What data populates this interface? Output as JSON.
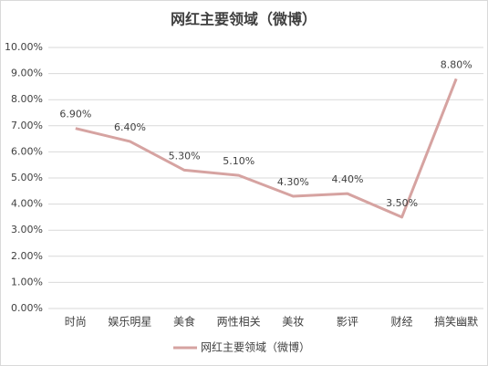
{
  "chart_data": {
    "type": "line",
    "title": "网红主要领域（微博）",
    "categories": [
      "时尚",
      "娱乐明星",
      "美食",
      "两性相关",
      "美妆",
      "影评",
      "财经",
      "搞笑幽默"
    ],
    "series": [
      {
        "name": "网红主要领域（微博）",
        "color": "#d6a3a1",
        "values": [
          6.9,
          6.4,
          5.3,
          5.1,
          4.3,
          4.4,
          3.5,
          8.8
        ],
        "value_labels": [
          "6.90%",
          "6.40%",
          "5.30%",
          "5.10%",
          "4.30%",
          "4.40%",
          "3.50%",
          "8.80%"
        ]
      }
    ],
    "ylim": [
      0,
      10
    ],
    "yticks": [
      {
        "value": 0,
        "label": "0.00%"
      },
      {
        "value": 1,
        "label": "1.00%"
      },
      {
        "value": 2,
        "label": "2.00%"
      },
      {
        "value": 3,
        "label": "3.00%"
      },
      {
        "value": 4,
        "label": "4.00%"
      },
      {
        "value": 5,
        "label": "5.00%"
      },
      {
        "value": 6,
        "label": "6.00%"
      },
      {
        "value": 7,
        "label": "7.00%"
      },
      {
        "value": 8,
        "label": "8.00%"
      },
      {
        "value": 9,
        "label": "9.00%"
      },
      {
        "value": 10,
        "label": "10.00%"
      }
    ],
    "grid": true,
    "legend": "bottom"
  }
}
